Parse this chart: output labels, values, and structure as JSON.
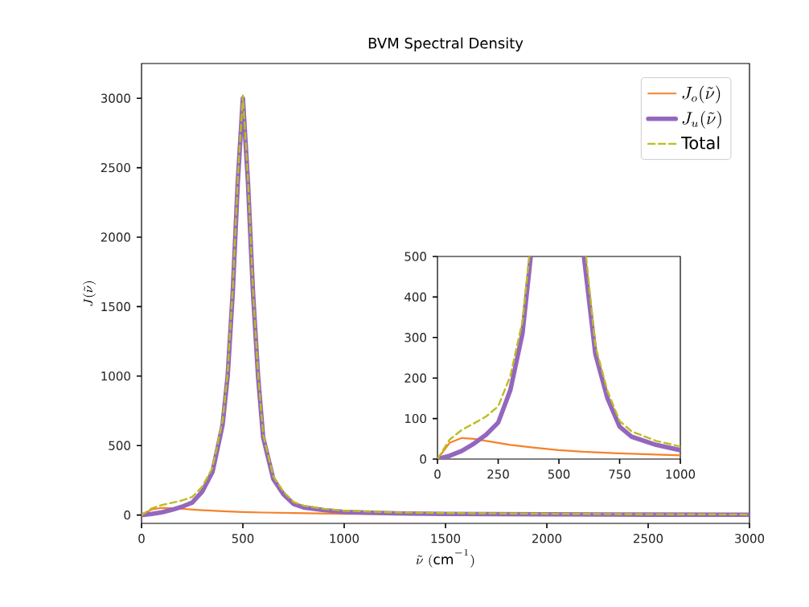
{
  "chart_data": [
    {
      "type": "line",
      "title": "BVM Spectral Density",
      "xlabel": "\\tilde{\\nu}\\ (\\mathrm{cm}^{-1})",
      "ylabel": "J(\\tilde{\\nu})",
      "series": [
        {
          "name": "J_o(\\tilde{\\nu})",
          "color": "#f5822a",
          "line_style": "solid",
          "x": [
            0,
            50,
            100,
            150,
            200,
            300,
            400,
            500,
            600,
            750,
            1000,
            1500
          ],
          "values": [
            0,
            40,
            52,
            50,
            45,
            35,
            28,
            22,
            18,
            14,
            9,
            6
          ]
        },
        {
          "name": "J_u(\\tilde{\\nu})",
          "color": "#9467bd",
          "line_style": "solid",
          "x": [
            0,
            50,
            100,
            150,
            200,
            250,
            300,
            350,
            400,
            425,
            450,
            475,
            500,
            525,
            550,
            575,
            600,
            650,
            700,
            750,
            800,
            900,
            1000,
            1250,
            1500,
            2000,
            2500,
            3000
          ],
          "values": [
            0,
            8,
            20,
            38,
            60,
            90,
            170,
            310,
            650,
            1000,
            1600,
            2400,
            3000,
            2400,
            1600,
            1000,
            560,
            260,
            150,
            80,
            55,
            35,
            22,
            12,
            8,
            5,
            3,
            2
          ]
        },
        {
          "name": "Total",
          "color": "#bcbd22",
          "line_style": "dashed",
          "x": [
            0,
            50,
            100,
            150,
            200,
            250,
            300,
            350,
            400,
            425,
            450,
            475,
            500,
            525,
            550,
            575,
            600,
            650,
            700,
            750,
            800,
            900,
            1000,
            1250,
            1500,
            2000,
            2500,
            3000
          ],
          "values": [
            0,
            48,
            72,
            88,
            105,
            130,
            205,
            340,
            678,
            1025,
            1625,
            2425,
            3020,
            2420,
            1620,
            1020,
            578,
            280,
            168,
            94,
            68,
            45,
            31,
            19,
            14,
            9,
            6,
            4
          ]
        }
      ],
      "xlim": [
        0,
        3000
      ],
      "ylim": [
        -60,
        3250
      ],
      "xticks": [
        0,
        500,
        1000,
        1500,
        2000,
        2500,
        3000
      ],
      "yticks": [
        0,
        500,
        1000,
        1500,
        2000,
        2500,
        3000
      ],
      "legend": "top right"
    },
    {
      "type": "line",
      "series": [
        {
          "color": "#f5822a",
          "line_style": "solid",
          "x": [
            0,
            50,
            100,
            150,
            200,
            300,
            400,
            500,
            600,
            750,
            1000
          ],
          "values": [
            0,
            40,
            52,
            50,
            45,
            35,
            28,
            22,
            18,
            14,
            9
          ]
        },
        {
          "color": "#9467bd",
          "line_style": "solid",
          "x": [
            0,
            50,
            100,
            150,
            200,
            250,
            300,
            350,
            384,
            500,
            603,
            650,
            700,
            750,
            800,
            900,
            1000
          ],
          "values": [
            0,
            8,
            20,
            38,
            60,
            90,
            170,
            310,
            500,
            null,
            500,
            260,
            150,
            80,
            55,
            35,
            22
          ]
        },
        {
          "color": "#bcbd22",
          "line_style": "dashed",
          "x": [
            0,
            50,
            100,
            150,
            200,
            250,
            300,
            350,
            378,
            500,
            612,
            650,
            700,
            750,
            800,
            900,
            1000
          ],
          "values": [
            0,
            48,
            72,
            88,
            105,
            130,
            205,
            340,
            500,
            null,
            500,
            280,
            168,
            94,
            68,
            45,
            31
          ]
        }
      ],
      "xlim": [
        0,
        1000
      ],
      "ylim": [
        0,
        500
      ],
      "xticks": [
        0,
        250,
        500,
        750,
        1000
      ],
      "yticks": [
        0,
        100,
        200,
        300,
        400,
        500
      ]
    }
  ]
}
